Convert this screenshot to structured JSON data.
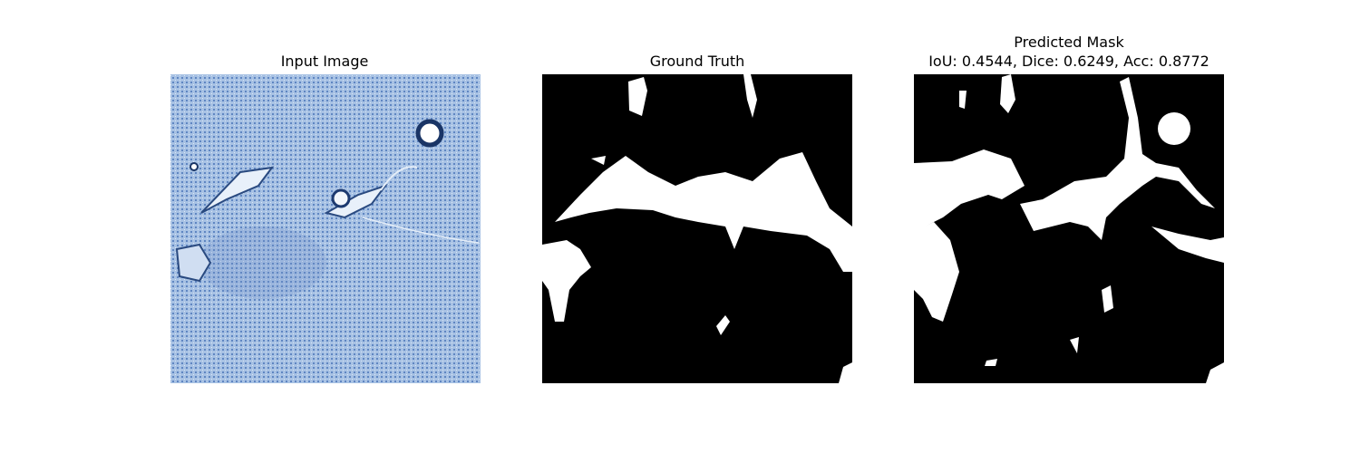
{
  "panels": [
    {
      "title": "Input Image"
    },
    {
      "title": "Ground Truth"
    },
    {
      "title": [
        "Predicted Mask",
        "IoU: 0.4544, Dice: 0.6249, Acc: 0.8772"
      ]
    }
  ]
}
